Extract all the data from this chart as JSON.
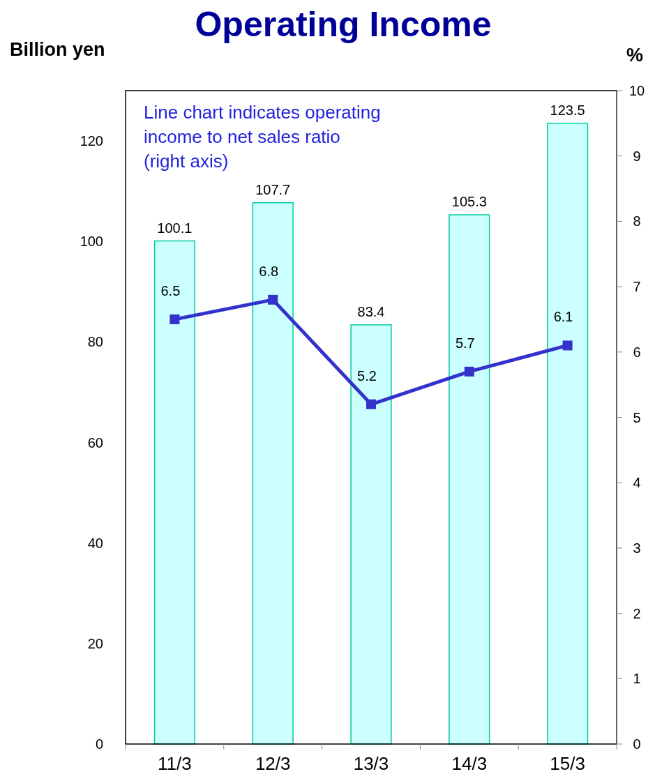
{
  "chart_data": {
    "type": "bar",
    "title": "Operating Income",
    "ylabel": "Billion yen",
    "y2label": "%",
    "categories": [
      "11/3",
      "12/3",
      "13/3",
      "14/3",
      "15/3"
    ],
    "series": [
      {
        "color": "#ccffff",
        "values": [
          100.1,
          107.7,
          83.4,
          105.3,
          123.5
        ]
      },
      {
        "type": "line",
        "axis": "y2",
        "color": "#3333cc",
        "values": [
          6.5,
          6.8,
          5.2,
          5.7,
          6.1
        ]
      }
    ],
    "ylim": [
      0,
      130
    ],
    "yticks": [
      0,
      20,
      40,
      60,
      80,
      100,
      120
    ],
    "y2lim": [
      0,
      10
    ],
    "y2ticks": [
      0,
      1,
      2,
      3,
      4,
      5,
      6,
      7,
      8,
      9,
      10
    ],
    "data_labels": true,
    "marker": "square",
    "grid": false,
    "annotations": [
      "Line chart indicates operating income to net sales ratio (right axis)"
    ]
  }
}
